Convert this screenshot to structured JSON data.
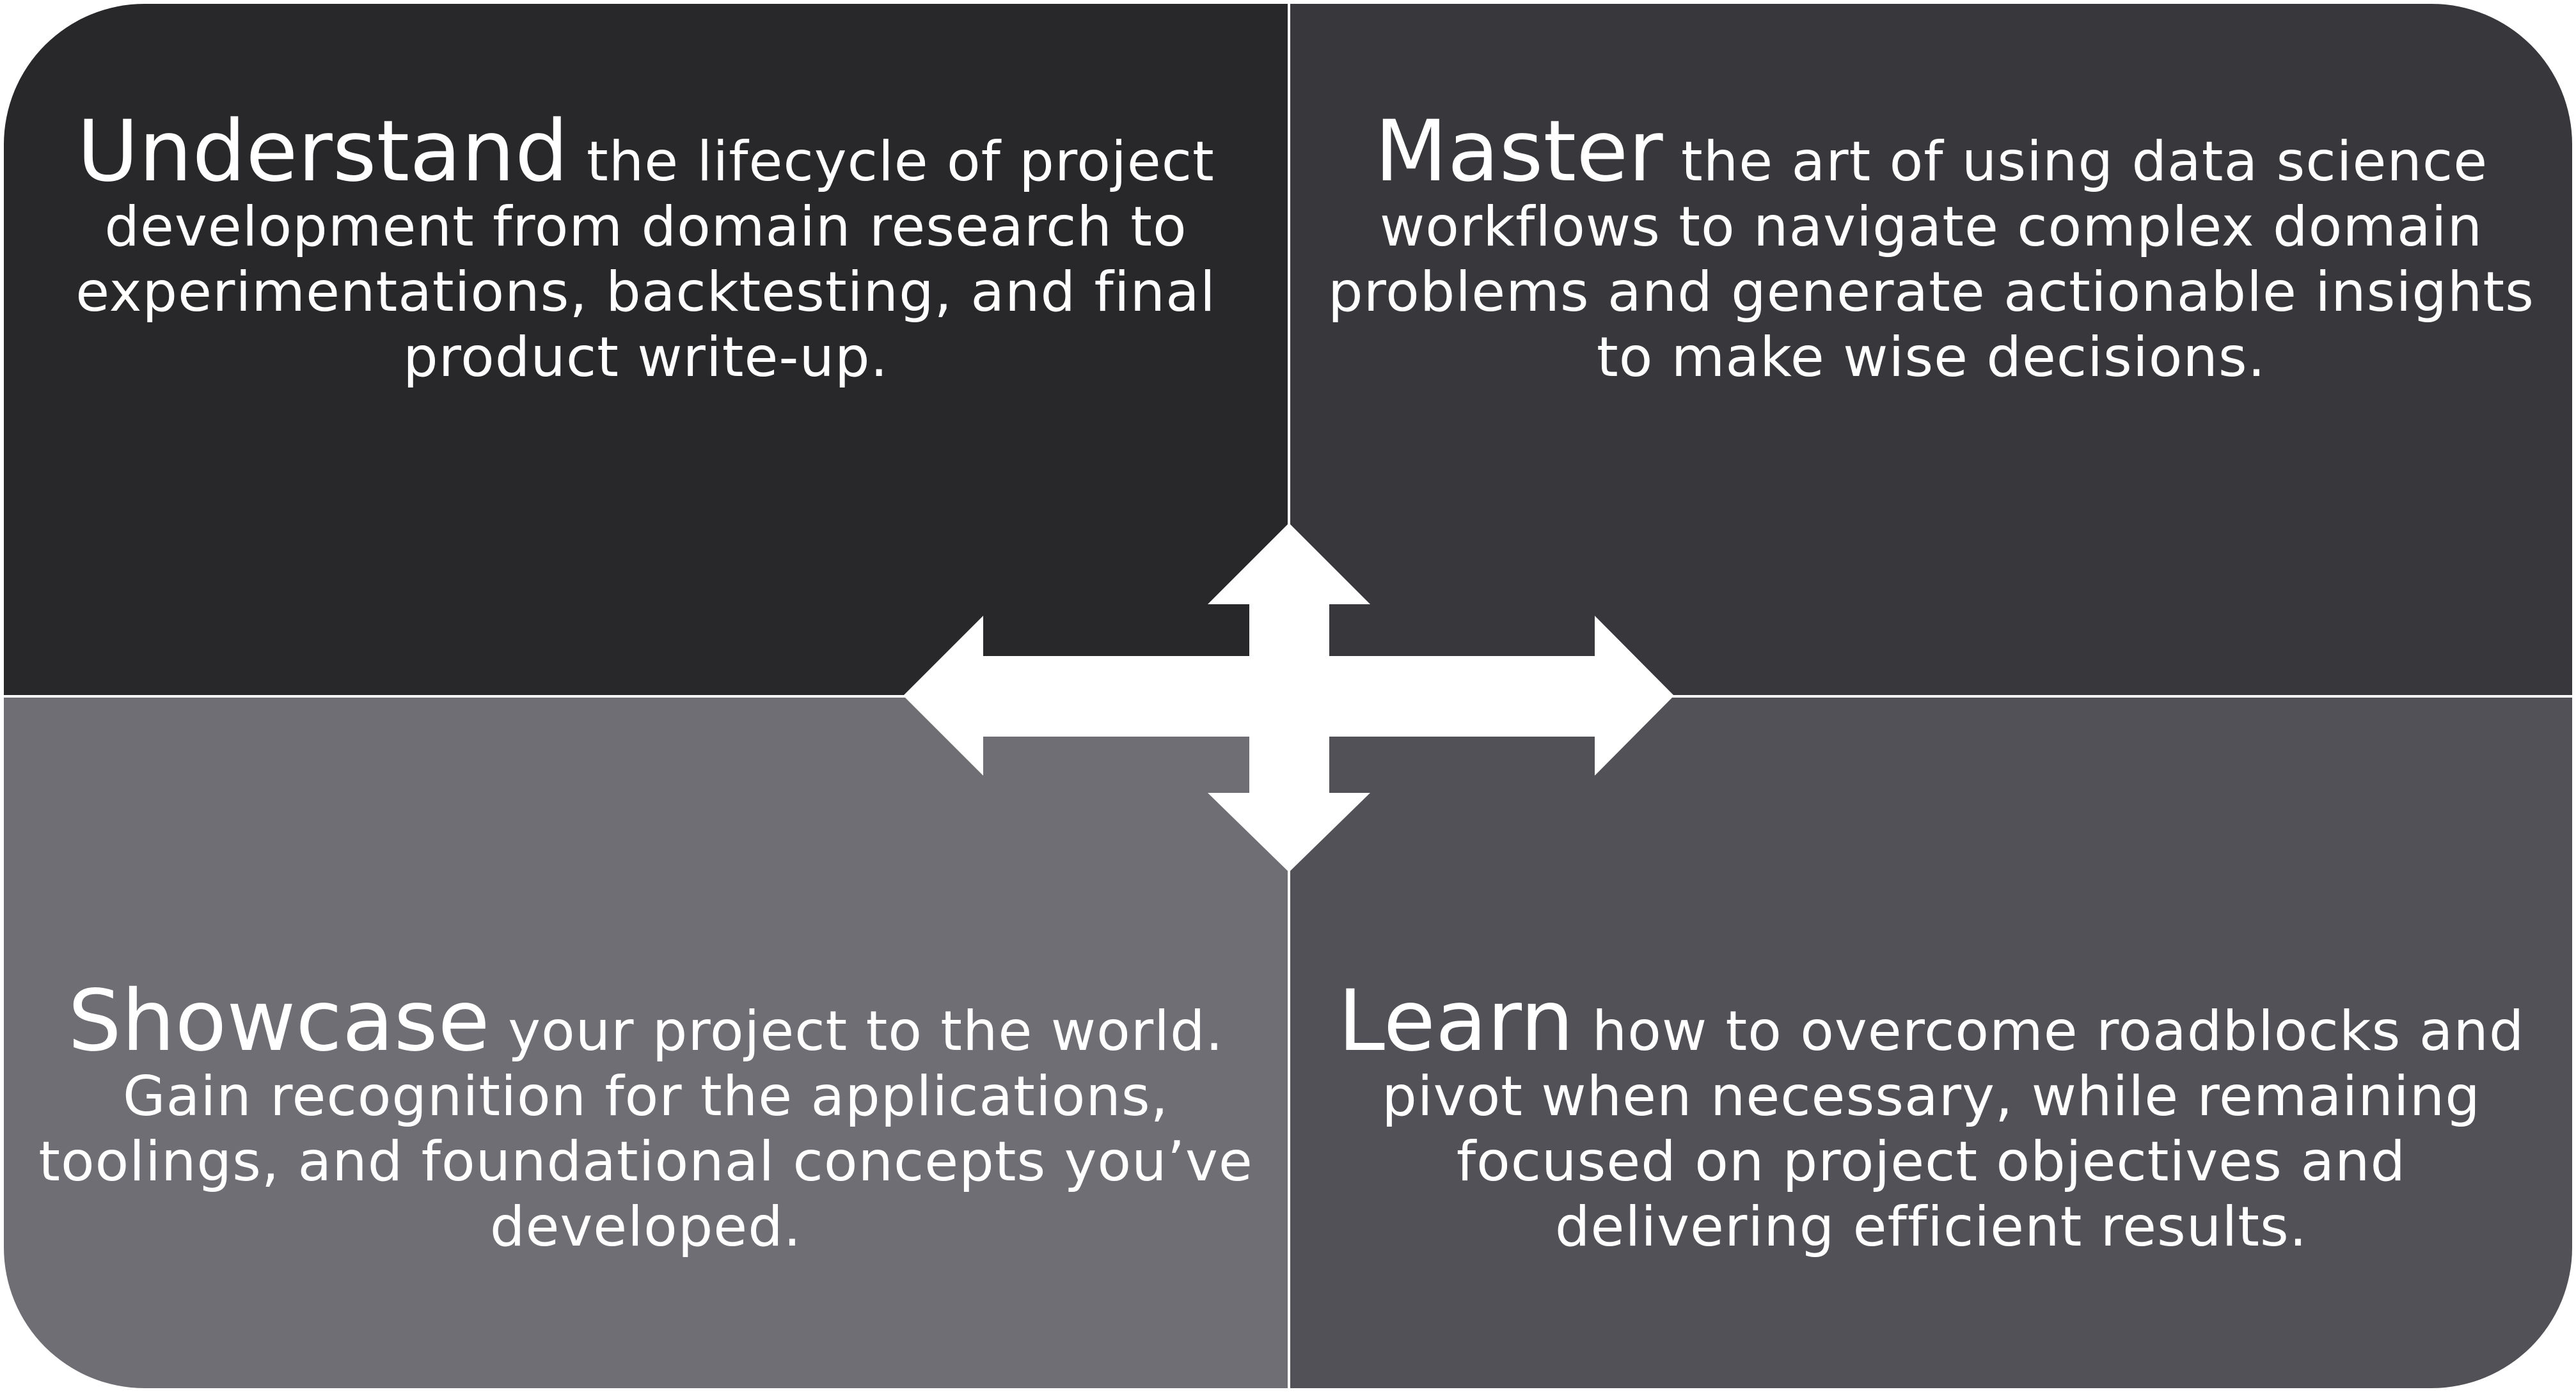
{
  "quadrants": {
    "top_left": {
      "keyword": "Understand",
      "text": "the lifecycle of project development from domain research to experimentations, backtesting, and final product write-up."
    },
    "top_right": {
      "keyword": "Master",
      "text": "the art of using data science workflows to navigate complex domain problems and generate actionable insights to make wise decisions."
    },
    "bottom_left": {
      "keyword": "Showcase",
      "text": "your project to the world. Gain recognition for the applications, toolings, and foundational concepts you’ve developed."
    },
    "bottom_right": {
      "keyword": "Learn",
      "text": "how to overcome roadblocks and pivot when necessary, while remaining focused on project objectives and delivering efficient results."
    }
  },
  "colors": {
    "top_left": "#28282b",
    "top_right": "#38383c",
    "bottom_left": "#6e6e74",
    "bottom_right": "#515157",
    "arrow": "#ffffff"
  },
  "icons": {
    "center": "four-way-arrow-icon"
  }
}
